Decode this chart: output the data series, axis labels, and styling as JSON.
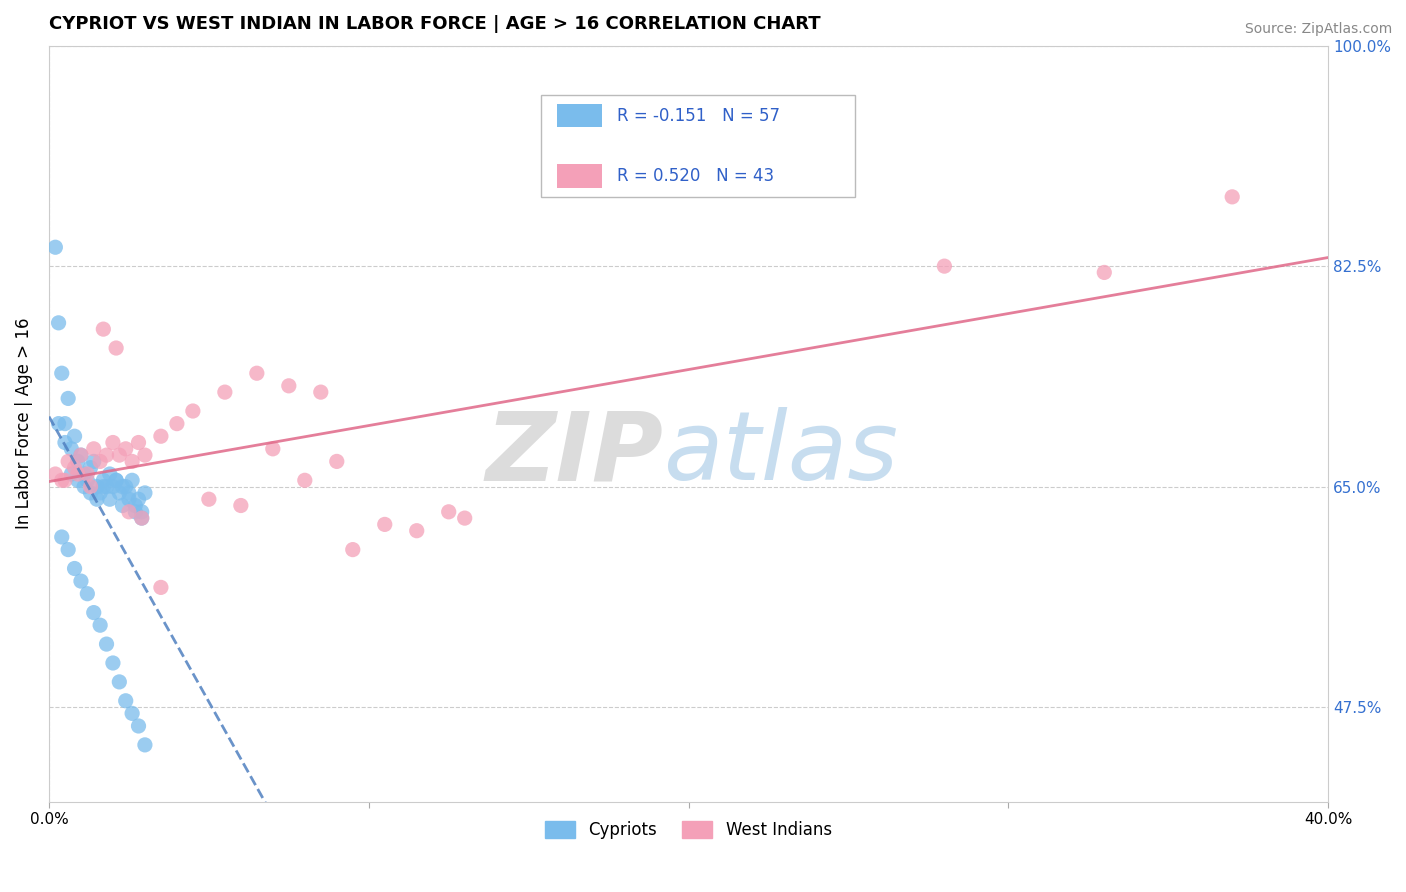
{
  "title": "CYPRIOT VS WEST INDIAN IN LABOR FORCE | AGE > 16 CORRELATION CHART",
  "source": "Source: ZipAtlas.com",
  "ylabel": "In Labor Force | Age > 16",
  "xlim": [
    0.0,
    40.0
  ],
  "ylim": [
    40.0,
    100.0
  ],
  "cypriot_color": "#7abcec",
  "westindian_color": "#f4a0b8",
  "cypriot_line_color": "#5080c0",
  "westindian_line_color": "#e06888",
  "R_cypriot": -0.151,
  "N_cypriot": 57,
  "R_westindian": 0.52,
  "N_westindian": 43,
  "legend_label_cypriot": "Cypriots",
  "legend_label_westindian": "West Indians",
  "background_color": "#ffffff",
  "grid_color": "#cccccc",
  "cypriot_x": [
    0.2,
    0.3,
    0.4,
    0.5,
    0.6,
    0.7,
    0.8,
    0.9,
    1.0,
    1.1,
    1.2,
    1.3,
    1.4,
    1.5,
    1.6,
    1.7,
    1.8,
    1.9,
    2.0,
    2.1,
    2.2,
    2.3,
    2.4,
    2.5,
    2.6,
    2.7,
    2.8,
    2.9,
    3.0,
    0.3,
    0.5,
    0.7,
    0.9,
    1.1,
    1.3,
    1.5,
    1.7,
    1.9,
    2.1,
    2.3,
    2.5,
    2.7,
    2.9,
    0.4,
    0.6,
    0.8,
    1.0,
    1.2,
    1.4,
    1.6,
    1.8,
    2.0,
    2.2,
    2.4,
    2.6,
    2.8,
    3.0
  ],
  "cypriot_y": [
    84.0,
    78.0,
    74.0,
    70.0,
    72.0,
    68.0,
    69.0,
    67.0,
    67.5,
    66.0,
    65.5,
    66.5,
    67.0,
    65.0,
    64.5,
    65.5,
    65.0,
    66.0,
    65.0,
    65.5,
    64.5,
    65.0,
    65.0,
    64.0,
    65.5,
    63.5,
    64.0,
    63.0,
    64.5,
    70.0,
    68.5,
    66.0,
    65.5,
    65.0,
    64.5,
    64.0,
    65.0,
    64.0,
    65.5,
    63.5,
    64.5,
    63.0,
    62.5,
    61.0,
    60.0,
    58.5,
    57.5,
    56.5,
    55.0,
    54.0,
    52.5,
    51.0,
    49.5,
    48.0,
    47.0,
    46.0,
    44.5
  ],
  "westindian_x": [
    0.2,
    0.4,
    0.6,
    0.8,
    1.0,
    1.2,
    1.4,
    1.6,
    1.8,
    2.0,
    2.2,
    2.4,
    2.6,
    2.8,
    3.0,
    3.5,
    4.0,
    4.5,
    5.5,
    6.5,
    7.5,
    8.5,
    9.5,
    10.5,
    11.5,
    12.5,
    13.0,
    0.5,
    0.9,
    1.3,
    1.7,
    2.1,
    2.5,
    2.9,
    3.5,
    5.0,
    6.0,
    7.0,
    8.0,
    9.0,
    28.0,
    33.0,
    37.0
  ],
  "westindian_y": [
    66.0,
    65.5,
    67.0,
    66.5,
    67.5,
    66.0,
    68.0,
    67.0,
    67.5,
    68.5,
    67.5,
    68.0,
    67.0,
    68.5,
    67.5,
    69.0,
    70.0,
    71.0,
    72.5,
    74.0,
    73.0,
    72.5,
    60.0,
    62.0,
    61.5,
    63.0,
    62.5,
    65.5,
    66.0,
    65.0,
    77.5,
    76.0,
    63.0,
    62.5,
    57.0,
    64.0,
    63.5,
    68.0,
    65.5,
    67.0,
    82.5,
    82.0,
    88.0
  ]
}
